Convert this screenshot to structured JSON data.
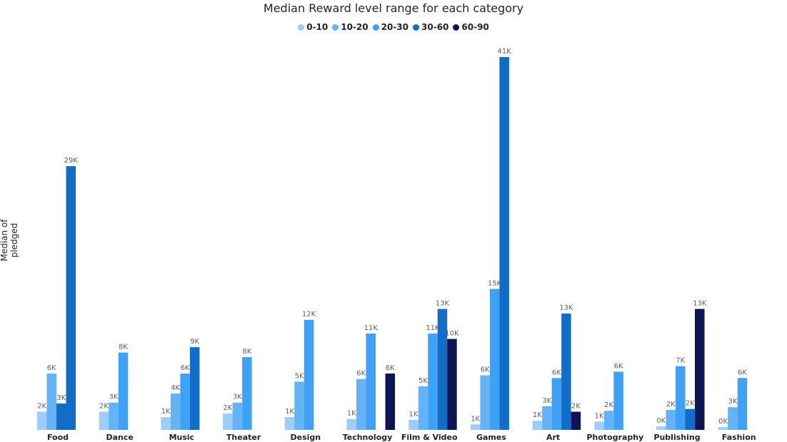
{
  "chart_data": {
    "type": "bar",
    "title": "Median Reward level range for each category",
    "ylabel": "Median of pledged",
    "xlabel": "",
    "ylim": [
      0,
      41000
    ],
    "legend_position": "top-center",
    "grid": false,
    "categories": [
      "Food",
      "Dance",
      "Music",
      "Theater",
      "Design",
      "Technology",
      "Film & Video",
      "Games",
      "Art",
      "Photography",
      "Publishing",
      "Fashion"
    ],
    "series": [
      {
        "name": "0-10",
        "color": "#9fcdfa",
        "values": [
          2000,
          2000,
          1400,
          1800,
          1400,
          1200,
          1100,
          600,
          1000,
          900,
          400,
          300
        ],
        "labels": [
          "2K",
          "2K",
          "1K",
          "2K",
          "1K",
          "1K",
          "1K",
          "1K",
          "1K",
          "1K",
          "0K",
          "0K"
        ]
      },
      {
        "name": "10-20",
        "color": "#64b3f6",
        "values": [
          6200,
          3000,
          4000,
          3000,
          5300,
          5600,
          4800,
          6000,
          2600,
          2100,
          2200,
          2500
        ],
        "labels": [
          "6K",
          "3K",
          "4K",
          "3K",
          "5K",
          "6K",
          "5K",
          "6K",
          "3K",
          "2K",
          "2K",
          "3K"
        ]
      },
      {
        "name": "20-30",
        "color": "#3ea1f6",
        "values": [
          null,
          8500,
          6200,
          8000,
          12100,
          10600,
          10600,
          15500,
          5700,
          6400,
          7000,
          5700
        ],
        "labels": [
          "",
          "8K",
          "6K",
          "8K",
          "12K",
          "11K",
          "11K",
          "15K",
          "6K",
          "6K",
          "7K",
          "6K"
        ]
      },
      {
        "name": "30-60",
        "color": "#126dc9",
        "values": [
          2900,
          null,
          9100,
          null,
          null,
          null,
          13300,
          41000,
          12800,
          null,
          2300,
          null
        ],
        "labels": [
          "3K",
          "",
          "9K",
          "",
          "",
          "",
          "13K",
          "41K",
          "13K",
          "",
          "2K",
          ""
        ]
      },
      {
        "name": "60-90",
        "color": "#0c1454",
        "values": [
          null,
          null,
          null,
          null,
          null,
          6200,
          10000,
          null,
          2000,
          null,
          13300,
          null
        ],
        "labels": [
          "",
          "",
          "",
          "",
          "",
          "6K",
          "10K",
          "",
          "2K",
          "",
          "13K",
          ""
        ]
      }
    ],
    "extra_bar_note": "Food 30-60 shown as second bar",
    "food_extra": {
      "series": "30-60",
      "value": 29000,
      "label": "29K"
    }
  }
}
